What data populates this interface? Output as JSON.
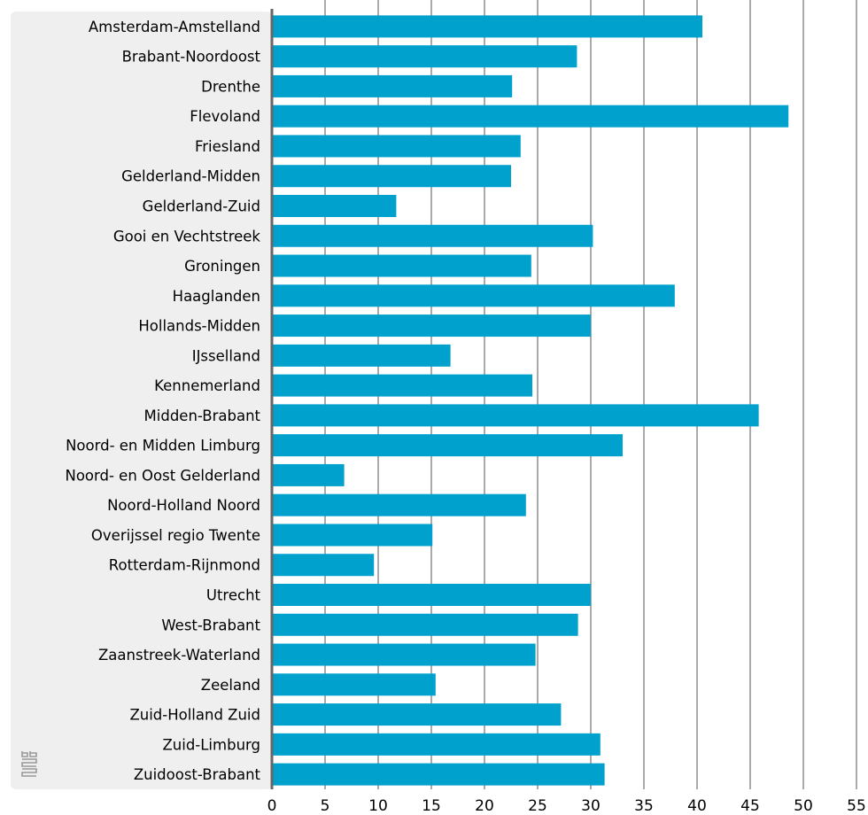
{
  "chart_data": {
    "type": "bar",
    "orientation": "horizontal",
    "categories": [
      "Amsterdam-Amstelland",
      "Brabant-Noordoost",
      "Drenthe",
      "Flevoland",
      "Friesland",
      "Gelderland-Midden",
      "Gelderland-Zuid",
      "Gooi en Vechtstreek",
      "Groningen",
      "Haaglanden",
      "Hollands-Midden",
      "IJsselland",
      "Kennemerland",
      "Midden-Brabant",
      "Noord- en Midden Limburg",
      "Noord- en Oost Gelderland",
      "Noord-Holland Noord",
      "Overijssel regio Twente",
      "Rotterdam-Rijnmond",
      "Utrecht",
      "West-Brabant",
      "Zaanstreek-Waterland",
      "Zeeland",
      "Zuid-Holland Zuid",
      "Zuid-Limburg",
      "Zuidoost-Brabant"
    ],
    "values": [
      40.5,
      28.7,
      22.6,
      48.6,
      23.4,
      22.5,
      11.7,
      30.2,
      24.4,
      37.9,
      30.0,
      16.8,
      24.5,
      45.8,
      33.0,
      6.8,
      23.9,
      15.1,
      9.6,
      30.0,
      28.8,
      24.8,
      15.4,
      27.2,
      30.9,
      31.3
    ],
    "xlim": [
      0,
      55
    ],
    "xticks": [
      "0",
      "5",
      "10",
      "15",
      "20",
      "25",
      "30",
      "35",
      "40",
      "45",
      "50",
      "55"
    ],
    "grid": true,
    "bar_color": "#00a1cd",
    "title": "",
    "xlabel": "",
    "ylabel": ""
  },
  "colors": {
    "label_panel": "#efefef",
    "axis": "#666666",
    "gridline": "#555555",
    "text": "#000000"
  },
  "logo": {
    "icon": "cbs-logo-icon"
  }
}
